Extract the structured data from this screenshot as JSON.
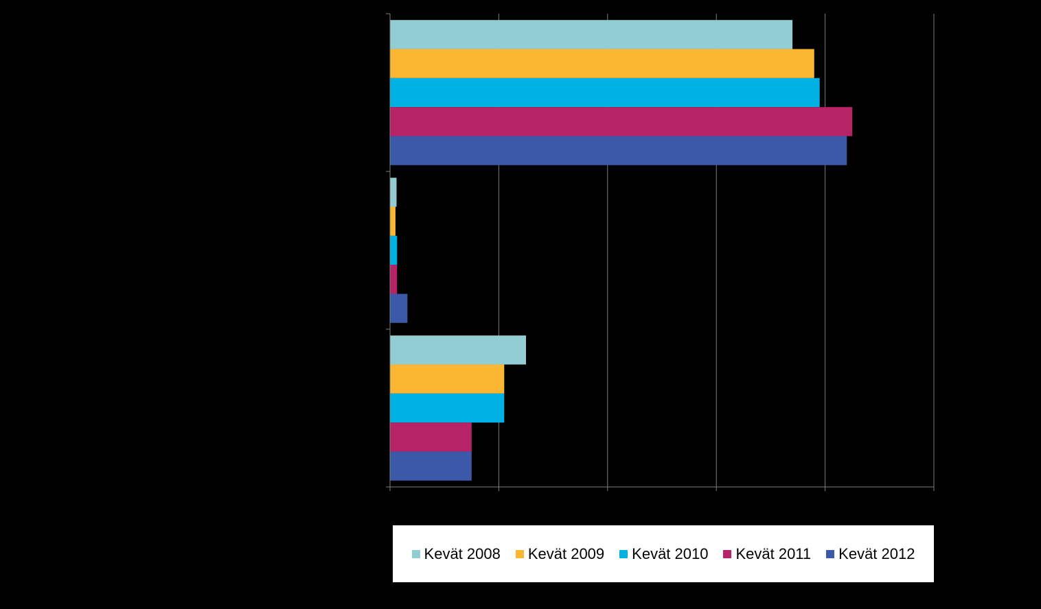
{
  "chart_data": {
    "type": "bar",
    "orientation": "horizontal",
    "title": "",
    "xlabel": "",
    "ylabel": "",
    "categories": [
      "",
      "",
      ""
    ],
    "xlim": [
      0,
      100
    ],
    "grid": true,
    "legend_position": "bottom",
    "series": [
      {
        "name": "Kevät 2008",
        "color": "#92CDD4",
        "values": [
          74,
          1.2,
          25
        ]
      },
      {
        "name": "Kevät 2009",
        "color": "#FBB731",
        "values": [
          78,
          1,
          21
        ]
      },
      {
        "name": "Kevät 2010",
        "color": "#00B2E3",
        "values": [
          79,
          1.3,
          21
        ]
      },
      {
        "name": "Kevät 2011",
        "color": "#B72367",
        "values": [
          85,
          1.3,
          15
        ]
      },
      {
        "name": "Kevät 2012",
        "color": "#3C58A8",
        "values": [
          84,
          3.2,
          15
        ]
      }
    ]
  }
}
